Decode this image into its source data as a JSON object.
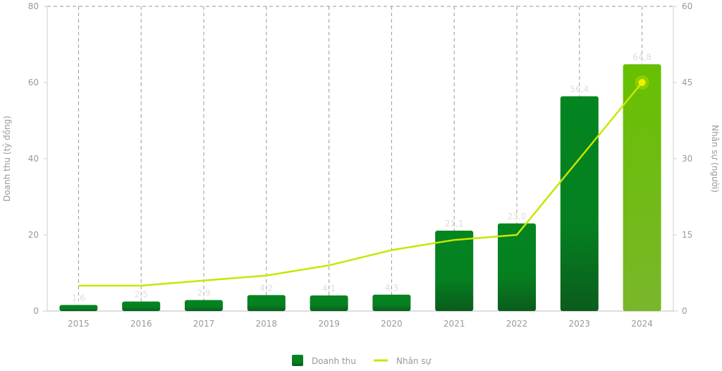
{
  "chart_data": {
    "type": "bar+line",
    "categories": [
      "2015",
      "2016",
      "2017",
      "2018",
      "2019",
      "2020",
      "2021",
      "2022",
      "2023",
      "2024"
    ],
    "series": [
      {
        "name": "Doanh thu",
        "type": "bar",
        "axis": "left",
        "values": [
          1.6,
          2.5,
          2.9,
          4.2,
          4.1,
          4.3,
          21.1,
          23.0,
          56.4,
          64.8
        ],
        "labels": [
          "1,6",
          "2,5",
          "2,9",
          "4,2",
          "4,1",
          "4,3",
          "21,1",
          "23,0",
          "56,4",
          "64,8"
        ]
      },
      {
        "name": "Nhân sự",
        "type": "line",
        "axis": "right",
        "values": [
          5,
          5,
          6,
          7,
          9,
          12,
          14,
          15,
          30,
          45
        ]
      }
    ],
    "ylabel_left": "Doanh thu (tỷ đồng)",
    "ylabel_right": "Nhân sự (người)",
    "ylim_left": [
      0,
      80
    ],
    "ylim_right": [
      0,
      60
    ],
    "yticks_left": [
      "0",
      "20",
      "40",
      "60",
      "80"
    ],
    "yticks_right": [
      "0",
      "15",
      "30",
      "45",
      "60"
    ],
    "grid": "vertical dashed",
    "legend": "bottom",
    "colors": {
      "bar": "#038520",
      "bar_bottom": "#0b5c1c",
      "bar_highlight": "#66c000",
      "bar_highlight_bottom": "#7ab62a",
      "line": "#c8e600",
      "marker": "#eef200"
    }
  }
}
